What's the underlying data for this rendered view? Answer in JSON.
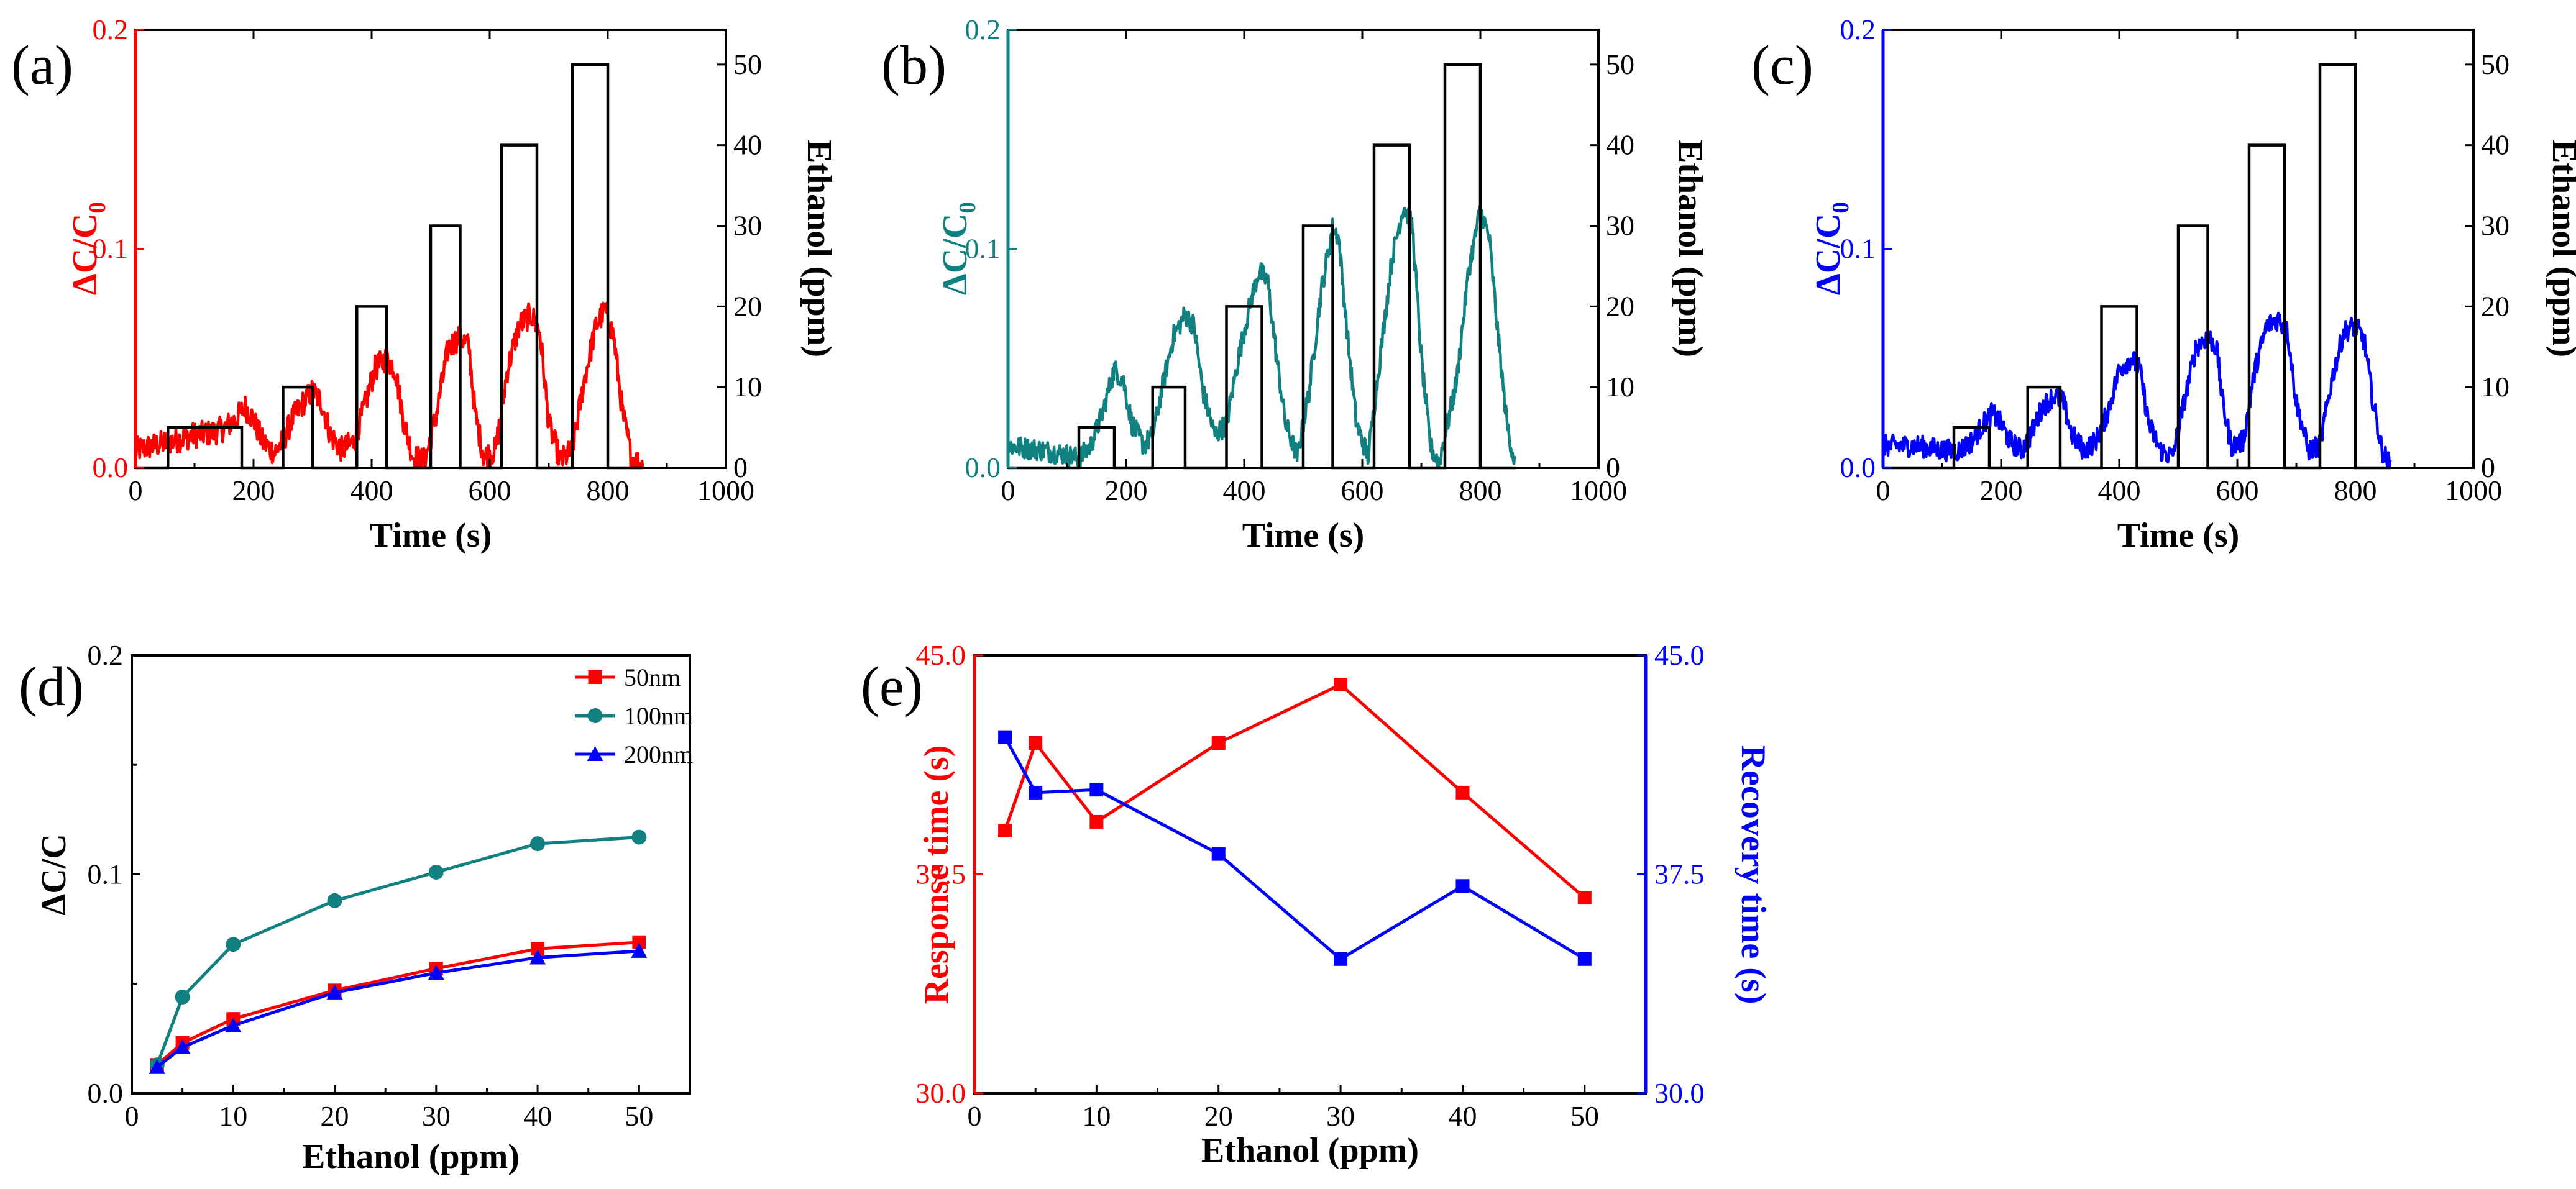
{
  "chart_data": [
    {
      "id": "a",
      "panel_label": "(a)",
      "type": "line",
      "accent_color": "#ff0000",
      "xlabel": "Time (s)",
      "ylabel_left": "ΔC/C₀",
      "ylabel_left_main": "ΔC/C",
      "ylabel_left_sub": "0",
      "ylabel_right": "Ethanol (ppm)",
      "xlim": [
        0,
        1000
      ],
      "ylim_left": [
        0,
        0.2
      ],
      "ylim_right": [
        0,
        54.3
      ],
      "xticks": [
        0,
        200,
        400,
        600,
        800,
        1000
      ],
      "yticks_left": [
        0.0,
        0.1,
        0.2
      ],
      "yticks_left_labels": [
        "0.0",
        "0.1",
        "0.2"
      ],
      "yticks_right": [
        0,
        10,
        20,
        30,
        40,
        50
      ],
      "response_profile": [
        [
          0,
          0.008
        ],
        [
          60,
          0.012
        ],
        [
          100,
          0.015
        ],
        [
          130,
          0.016
        ],
        [
          150,
          0.018
        ],
        [
          170,
          0.022
        ],
        [
          185,
          0.028
        ],
        [
          200,
          0.022
        ],
        [
          215,
          0.012
        ],
        [
          235,
          0.007
        ],
        [
          250,
          0.012
        ],
        [
          265,
          0.022
        ],
        [
          285,
          0.03
        ],
        [
          300,
          0.035
        ],
        [
          315,
          0.03
        ],
        [
          330,
          0.015
        ],
        [
          350,
          0.008
        ],
        [
          370,
          0.012
        ],
        [
          385,
          0.025
        ],
        [
          405,
          0.045
        ],
        [
          425,
          0.05
        ],
        [
          440,
          0.045
        ],
        [
          455,
          0.02
        ],
        [
          470,
          0.005
        ],
        [
          490,
          0.003
        ],
        [
          510,
          0.025
        ],
        [
          530,
          0.055
        ],
        [
          550,
          0.06
        ],
        [
          565,
          0.055
        ],
        [
          575,
          0.025
        ],
        [
          590,
          0.005
        ],
        [
          610,
          0.008
        ],
        [
          630,
          0.045
        ],
        [
          650,
          0.065
        ],
        [
          670,
          0.07
        ],
        [
          685,
          0.062
        ],
        [
          700,
          0.02
        ],
        [
          720,
          0.003
        ],
        [
          740,
          0.008
        ],
        [
          760,
          0.04
        ],
        [
          780,
          0.065
        ],
        [
          795,
          0.072
        ],
        [
          810,
          0.06
        ],
        [
          825,
          0.025
        ],
        [
          840,
          0.005
        ],
        [
          860,
          0
        ]
      ],
      "response_noise": 0.006,
      "gas_pulses": [
        {
          "start": 55,
          "end": 180,
          "ppm": 5
        },
        {
          "start": 250,
          "end": 300,
          "ppm": 10
        },
        {
          "start": 375,
          "end": 425,
          "ppm": 20
        },
        {
          "start": 500,
          "end": 550,
          "ppm": 30
        },
        {
          "start": 620,
          "end": 680,
          "ppm": 40
        },
        {
          "start": 740,
          "end": 800,
          "ppm": 50
        }
      ]
    },
    {
      "id": "b",
      "panel_label": "(b)",
      "type": "line",
      "accent_color": "#118080",
      "xlabel": "Time (s)",
      "ylabel_left": "ΔC/C₀",
      "ylabel_left_main": "ΔC/C",
      "ylabel_left_sub": "0",
      "ylabel_right": "Ethanol (ppm)",
      "xlim": [
        0,
        1000
      ],
      "ylim_left": [
        0,
        0.2
      ],
      "ylim_right": [
        0,
        54.3
      ],
      "xticks": [
        0,
        200,
        400,
        600,
        800,
        1000
      ],
      "yticks_left": [
        0.0,
        0.1,
        0.2
      ],
      "yticks_left_labels": [
        "0.0",
        "0.1",
        "0.2"
      ],
      "yticks_right": [
        0,
        10,
        20,
        30,
        40,
        50
      ],
      "response_profile": [
        [
          0,
          0.01
        ],
        [
          60,
          0.008
        ],
        [
          100,
          0.006
        ],
        [
          120,
          0.004
        ],
        [
          140,
          0.01
        ],
        [
          160,
          0.025
        ],
        [
          180,
          0.045
        ],
        [
          195,
          0.04
        ],
        [
          210,
          0.02
        ],
        [
          230,
          0.01
        ],
        [
          245,
          0.015
        ],
        [
          260,
          0.035
        ],
        [
          280,
          0.06
        ],
        [
          300,
          0.07
        ],
        [
          315,
          0.065
        ],
        [
          330,
          0.035
        ],
        [
          350,
          0.015
        ],
        [
          370,
          0.02
        ],
        [
          390,
          0.05
        ],
        [
          410,
          0.075
        ],
        [
          425,
          0.09
        ],
        [
          440,
          0.085
        ],
        [
          455,
          0.05
        ],
        [
          470,
          0.02
        ],
        [
          490,
          0.005
        ],
        [
          510,
          0.035
        ],
        [
          530,
          0.08
        ],
        [
          550,
          0.11
        ],
        [
          560,
          0.105
        ],
        [
          575,
          0.06
        ],
        [
          590,
          0.02
        ],
        [
          610,
          0.005
        ],
        [
          630,
          0.05
        ],
        [
          650,
          0.095
        ],
        [
          670,
          0.12
        ],
        [
          685,
          0.11
        ],
        [
          700,
          0.05
        ],
        [
          715,
          0.01
        ],
        [
          730,
          0.002
        ],
        [
          760,
          0.04
        ],
        [
          780,
          0.09
        ],
        [
          800,
          0.118
        ],
        [
          815,
          0.105
        ],
        [
          830,
          0.06
        ],
        [
          845,
          0.02
        ],
        [
          860,
          0
        ]
      ],
      "response_noise": 0.005,
      "gas_pulses": [
        {
          "start": 120,
          "end": 180,
          "ppm": 5
        },
        {
          "start": 245,
          "end": 300,
          "ppm": 10
        },
        {
          "start": 370,
          "end": 430,
          "ppm": 20
        },
        {
          "start": 500,
          "end": 550,
          "ppm": 30
        },
        {
          "start": 620,
          "end": 680,
          "ppm": 40
        },
        {
          "start": 740,
          "end": 800,
          "ppm": 50
        }
      ]
    },
    {
      "id": "c",
      "panel_label": "(c)",
      "type": "line",
      "accent_color": "#0000ff",
      "xlabel": "Time (s)",
      "ylabel_left": "ΔC/C₀",
      "ylabel_left_main": "ΔC/C",
      "ylabel_left_sub": "0",
      "ylabel_right": "Ethanol (ppm)",
      "xlim": [
        0,
        1000
      ],
      "ylim_left": [
        0,
        0.2
      ],
      "ylim_right": [
        0,
        54.3
      ],
      "xticks": [
        0,
        200,
        400,
        600,
        800,
        1000
      ],
      "yticks_left": [
        0.0,
        0.1,
        0.2
      ],
      "yticks_left_labels": [
        "0.0",
        "0.1",
        "0.2"
      ],
      "yticks_right": [
        0,
        10,
        20,
        30,
        40,
        50
      ],
      "response_profile": [
        [
          0,
          0.01
        ],
        [
          60,
          0.01
        ],
        [
          100,
          0.008
        ],
        [
          130,
          0.008
        ],
        [
          150,
          0.012
        ],
        [
          170,
          0.02
        ],
        [
          185,
          0.025
        ],
        [
          200,
          0.02
        ],
        [
          215,
          0.012
        ],
        [
          235,
          0.008
        ],
        [
          250,
          0.015
        ],
        [
          270,
          0.028
        ],
        [
          290,
          0.033
        ],
        [
          305,
          0.03
        ],
        [
          320,
          0.015
        ],
        [
          340,
          0.008
        ],
        [
          360,
          0.012
        ],
        [
          380,
          0.025
        ],
        [
          400,
          0.045
        ],
        [
          420,
          0.05
        ],
        [
          435,
          0.045
        ],
        [
          450,
          0.02
        ],
        [
          470,
          0.008
        ],
        [
          490,
          0.005
        ],
        [
          510,
          0.03
        ],
        [
          530,
          0.055
        ],
        [
          550,
          0.06
        ],
        [
          565,
          0.055
        ],
        [
          575,
          0.03
        ],
        [
          590,
          0.01
        ],
        [
          610,
          0.012
        ],
        [
          630,
          0.045
        ],
        [
          650,
          0.065
        ],
        [
          670,
          0.068
        ],
        [
          685,
          0.062
        ],
        [
          700,
          0.03
        ],
        [
          720,
          0.008
        ],
        [
          740,
          0.01
        ],
        [
          760,
          0.04
        ],
        [
          780,
          0.062
        ],
        [
          800,
          0.065
        ],
        [
          815,
          0.058
        ],
        [
          830,
          0.03
        ],
        [
          845,
          0.008
        ],
        [
          860,
          0
        ]
      ],
      "response_noise": 0.005,
      "gas_pulses": [
        {
          "start": 120,
          "end": 180,
          "ppm": 5
        },
        {
          "start": 245,
          "end": 300,
          "ppm": 10
        },
        {
          "start": 370,
          "end": 430,
          "ppm": 20
        },
        {
          "start": 500,
          "end": 550,
          "ppm": 30
        },
        {
          "start": 620,
          "end": 680,
          "ppm": 40
        },
        {
          "start": 740,
          "end": 800,
          "ppm": 50
        }
      ]
    },
    {
      "id": "d",
      "panel_label": "(d)",
      "type": "line",
      "xlabel": "Ethanol (ppm)",
      "ylabel": "ΔC/C",
      "xlim": [
        0,
        55
      ],
      "ylim": [
        0,
        0.2
      ],
      "xticks": [
        0,
        10,
        20,
        30,
        40,
        50
      ],
      "yticks": [
        0.0,
        0.1,
        0.2
      ],
      "yticks_labels": [
        "0.0",
        "0.1",
        "0.2"
      ],
      "x": [
        2.5,
        5,
        10,
        20,
        30,
        40,
        50
      ],
      "legend_position": "top-right",
      "series": [
        {
          "name": "50nm",
          "color": "#ff0000",
          "marker": "square",
          "values": [
            0.013,
            0.023,
            0.034,
            0.047,
            0.057,
            0.066,
            0.069
          ]
        },
        {
          "name": "100nm",
          "color": "#118080",
          "marker": "circle",
          "values": [
            0.013,
            0.044,
            0.068,
            0.088,
            0.101,
            0.114,
            0.117
          ]
        },
        {
          "name": "200nm",
          "color": "#0000ff",
          "marker": "triangle",
          "values": [
            0.012,
            0.021,
            0.031,
            0.046,
            0.055,
            0.062,
            0.065
          ]
        }
      ]
    },
    {
      "id": "e",
      "panel_label": "(e)",
      "type": "line",
      "xlabel": "Ethanol (ppm)",
      "ylabel_left": "Response time (s)",
      "ylabel_right": "Recovery time (s)",
      "left_color": "#ff0000",
      "right_color": "#0000ff",
      "xlim": [
        0,
        55
      ],
      "ylim_left": [
        30,
        45
      ],
      "ylim_right": [
        30,
        45
      ],
      "xticks": [
        0,
        10,
        20,
        30,
        40,
        50
      ],
      "yticks_left": [
        30.0,
        37.5,
        45.0
      ],
      "yticks_left_labels": [
        "30.0",
        "37.5",
        "45.0"
      ],
      "yticks_right": [
        30.0,
        37.5,
        45.0
      ],
      "yticks_right_labels": [
        "30.0",
        "37.5",
        "45.0"
      ],
      "x": [
        2.5,
        5,
        10,
        20,
        30,
        40,
        50
      ],
      "series": [
        {
          "name": "Response time",
          "axis": "left",
          "color": "#ff0000",
          "marker": "square",
          "values": [
            39.0,
            42.0,
            39.3,
            42.0,
            44.0,
            40.3,
            36.7
          ]
        },
        {
          "name": "Recovery time",
          "axis": "right",
          "color": "#0000ff",
          "marker": "square",
          "values": [
            42.2,
            40.3,
            40.4,
            38.2,
            34.6,
            37.1,
            34.6
          ]
        }
      ]
    }
  ]
}
